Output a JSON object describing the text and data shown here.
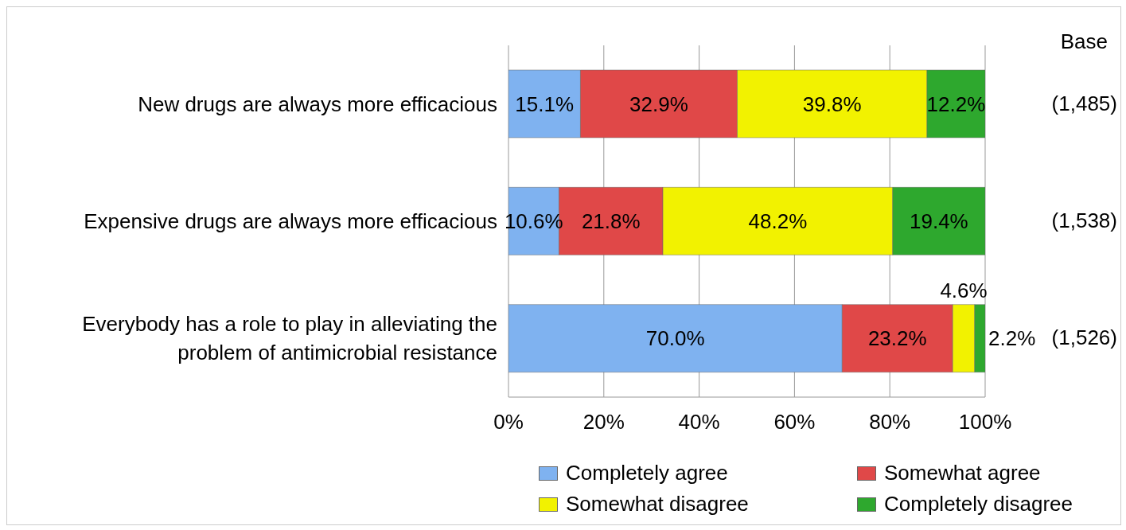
{
  "chart_data": {
    "type": "bar",
    "orientation": "horizontal",
    "stacked": true,
    "categories": [
      "New drugs are always more efficacious",
      "Expensive drugs are always more efficacious",
      "Everybody has a role to play in alleviating the problem of antimicrobial resistance"
    ],
    "series": [
      {
        "name": "Completely agree",
        "color": "#7fb2f0",
        "values": [
          15.1,
          10.6,
          70.0
        ],
        "value_labels": [
          "15.1%",
          "10.6%",
          "70.0%"
        ]
      },
      {
        "name": "Somewhat agree",
        "color": "#e04848",
        "values": [
          32.9,
          21.8,
          23.2
        ],
        "value_labels": [
          "32.9%",
          "21.8%",
          "23.2%"
        ]
      },
      {
        "name": "Somewhat disagree",
        "color": "#f2f200",
        "values": [
          39.8,
          48.2,
          4.6
        ],
        "value_labels": [
          "39.8%",
          "48.2%",
          "4.6%"
        ]
      },
      {
        "name": "Completely disagree",
        "color": "#2ea82e",
        "values": [
          12.2,
          19.4,
          2.2
        ],
        "value_labels": [
          "12.2%",
          "19.4%",
          "2.2%"
        ]
      }
    ],
    "xlim": [
      0,
      100
    ],
    "xticks": [
      {
        "value": 0,
        "label": "0%"
      },
      {
        "value": 20,
        "label": "20%"
      },
      {
        "value": 40,
        "label": "40%"
      },
      {
        "value": 60,
        "label": "60%"
      },
      {
        "value": 80,
        "label": "80%"
      },
      {
        "value": 100,
        "label": "100%"
      }
    ],
    "grid": "x",
    "legend": "bottom",
    "annotations": [
      "Base",
      "(1,485)",
      "(1,538)",
      "(1,526)"
    ]
  }
}
